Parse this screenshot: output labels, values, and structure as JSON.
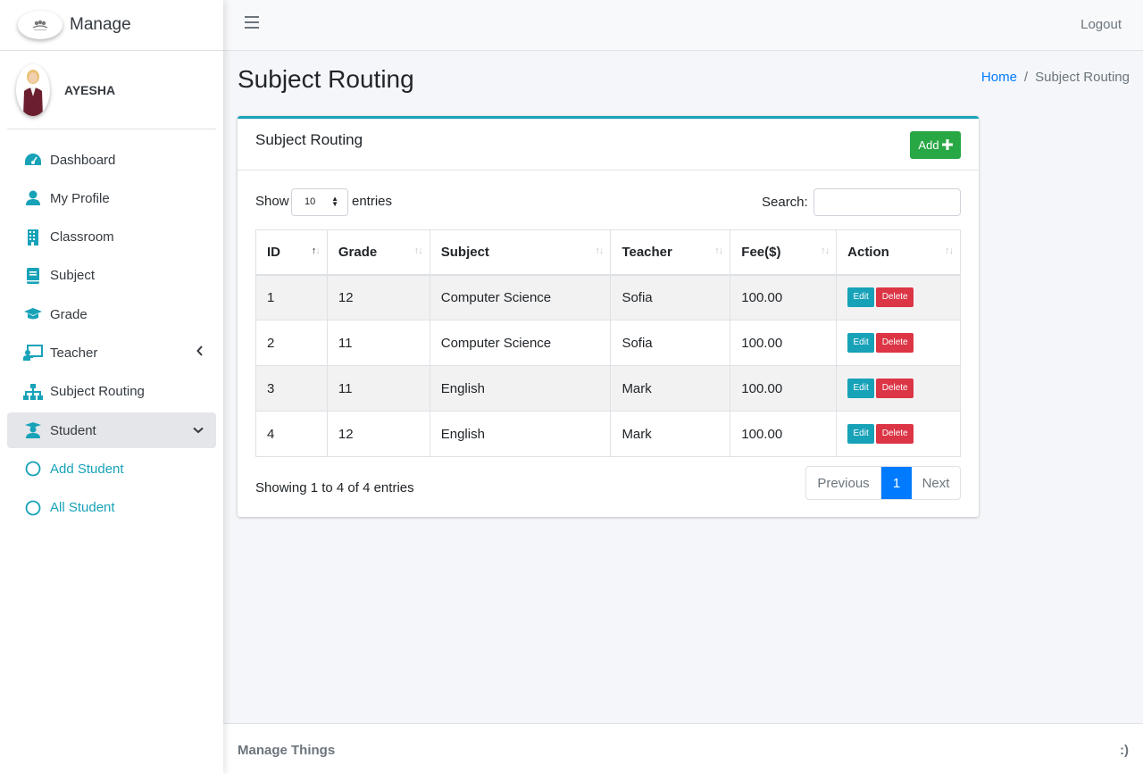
{
  "brand": {
    "title": "Manage"
  },
  "user": {
    "name": "AYESHA"
  },
  "nav": {
    "items": [
      {
        "label": "Dashboard"
      },
      {
        "label": "My Profile"
      },
      {
        "label": "Classroom"
      },
      {
        "label": "Subject"
      },
      {
        "label": "Grade"
      },
      {
        "label": "Teacher"
      },
      {
        "label": "Subject Routing"
      },
      {
        "label": "Student"
      },
      {
        "label": "Add Student"
      },
      {
        "label": "All Student"
      }
    ]
  },
  "topbar": {
    "logout": "Logout"
  },
  "page": {
    "title": "Subject Routing"
  },
  "breadcrumb": {
    "home": "Home",
    "sep": "/",
    "current": "Subject Routing"
  },
  "card": {
    "title": "Subject Routing",
    "add_label": "Add",
    "show_label": "Show",
    "entries_label": "entries",
    "page_size": "10",
    "search_label": "Search:",
    "search_value": ""
  },
  "table": {
    "headers": [
      "ID",
      "Grade",
      "Subject",
      "Teacher",
      "Fee($)",
      "Action"
    ],
    "rows": [
      {
        "id": "1",
        "grade": "12",
        "subject": "Computer Science",
        "teacher": "Sofia",
        "fee": "100.00"
      },
      {
        "id": "2",
        "grade": "11",
        "subject": "Computer Science",
        "teacher": "Sofia",
        "fee": "100.00"
      },
      {
        "id": "3",
        "grade": "11",
        "subject": "English",
        "teacher": "Mark",
        "fee": "100.00"
      },
      {
        "id": "4",
        "grade": "12",
        "subject": "English",
        "teacher": "Mark",
        "fee": "100.00"
      }
    ],
    "edit_label": "Edit",
    "delete_label": "Delete"
  },
  "pagination": {
    "info": "Showing 1 to 4 of 4 entries",
    "previous": "Previous",
    "current": "1",
    "next": "Next"
  },
  "footer": {
    "left": "Manage Things",
    "right": ":)"
  },
  "colors": {
    "accent": "#17a2b8",
    "success": "#28a745",
    "danger": "#dc3545",
    "primary": "#007bff"
  }
}
